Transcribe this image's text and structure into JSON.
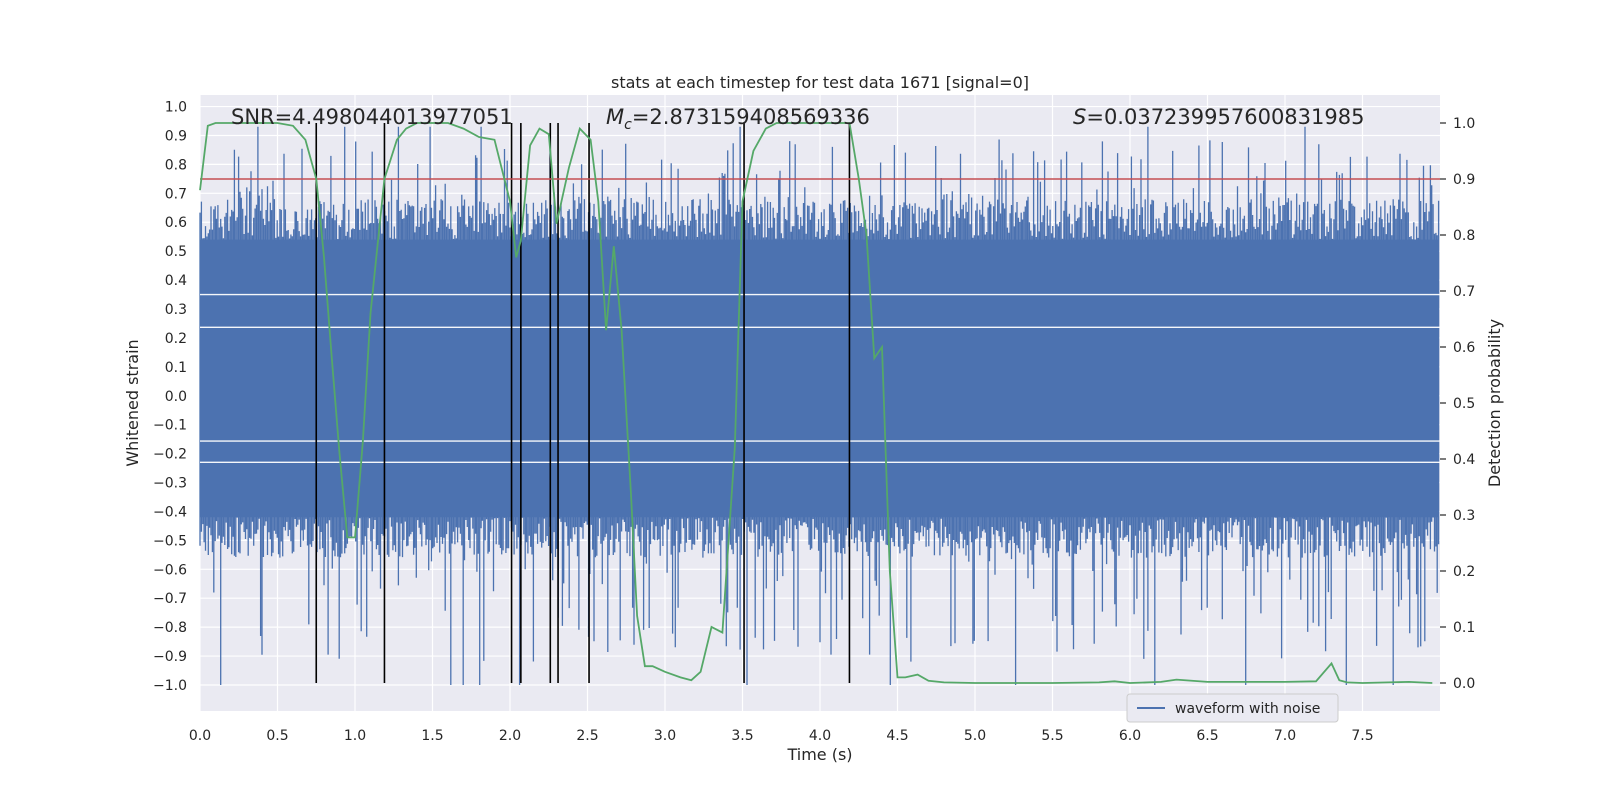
{
  "chart_data": {
    "type": "line",
    "title": "stats at each timestep for test data 1671 [signal=0]",
    "xlabel": "Time (s)",
    "ylabel": "Whitened strain",
    "ylabel_right": "Detection probability",
    "xlim": [
      0.0,
      8.0
    ],
    "ylim": [
      -1.09,
      1.04
    ],
    "ylim_right": [
      -0.05,
      1.05
    ],
    "x_ticks": [
      0.0,
      0.5,
      1.0,
      1.5,
      2.0,
      2.5,
      3.0,
      3.5,
      4.0,
      4.5,
      5.0,
      5.5,
      6.0,
      6.5,
      7.0,
      7.5
    ],
    "x_tick_labels": [
      "0.0",
      "0.5",
      "1.0",
      "1.5",
      "2.0",
      "2.5",
      "3.0",
      "3.5",
      "4.0",
      "4.5",
      "5.0",
      "5.5",
      "6.0",
      "6.5",
      "7.0",
      "7.5"
    ],
    "y_ticks": [
      1.0,
      0.9,
      0.8,
      0.7,
      0.6,
      0.5,
      0.4,
      0.3,
      0.2,
      0.1,
      0.0,
      -0.1,
      -0.2,
      -0.3,
      -0.4,
      -0.5,
      -0.6,
      -0.7,
      -0.8,
      -0.9,
      -1.0
    ],
    "y_tick_labels": [
      "1.0",
      "0.9",
      "0.8",
      "0.7",
      "0.6",
      "0.5",
      "0.4",
      "0.3",
      "0.2",
      "0.1",
      "0.0",
      "−0.1",
      "−0.2",
      "−0.3",
      "−0.4",
      "−0.5",
      "−0.6",
      "−0.7",
      "−0.8",
      "−0.9",
      "−1.0"
    ],
    "y_ticks_right": [
      1.0,
      0.9,
      0.8,
      0.7,
      0.6,
      0.5,
      0.4,
      0.3,
      0.2,
      0.1,
      0.0
    ],
    "y_tick_labels_right": [
      "1.0",
      "0.9",
      "0.8",
      "0.7",
      "0.6",
      "0.5",
      "0.4",
      "0.3",
      "0.2",
      "0.1",
      "0.0"
    ],
    "annotations": {
      "snr": "SNR=4.498044013977051",
      "mc_symbol": "M",
      "mc_subscript": "c",
      "mc_value": "=2.873159408569336",
      "s_symbol": "S",
      "s_value": "=0.037239957600831985"
    },
    "legend": {
      "label": "waveform with noise",
      "location": "bottom-right"
    },
    "threshold_right": 0.9,
    "vertical_lines_x": [
      0.75,
      1.19,
      2.01,
      2.07,
      2.26,
      2.31,
      2.51,
      3.51,
      4.19
    ],
    "waveform": {
      "name": "waveform with noise",
      "color": "#4c72b0",
      "duration_s": 8.0,
      "core_band": [
        -0.42,
        0.54
      ],
      "bright_dense_band": [
        -0.23,
        0.35
      ],
      "typical_peak_max": 0.93,
      "typical_trough_min": -1.0
    },
    "series": [
      {
        "name": "detection probability",
        "axis": "right",
        "color": "#55a868",
        "x": [
          0.0,
          0.05,
          0.1,
          0.2,
          0.3,
          0.4,
          0.5,
          0.6,
          0.68,
          0.75,
          0.8,
          0.85,
          0.9,
          0.95,
          1.0,
          1.05,
          1.1,
          1.19,
          1.27,
          1.33,
          1.4,
          1.5,
          1.6,
          1.7,
          1.8,
          1.9,
          2.0,
          2.04,
          2.07,
          2.13,
          2.19,
          2.25,
          2.3,
          2.38,
          2.45,
          2.52,
          2.57,
          2.62,
          2.67,
          2.72,
          2.78,
          2.82,
          2.87,
          2.92,
          3.0,
          3.1,
          3.17,
          3.23,
          3.3,
          3.37,
          3.45,
          3.5,
          3.57,
          3.65,
          3.72,
          3.82,
          3.9,
          4.0,
          4.1,
          4.19,
          4.25,
          4.3,
          4.35,
          4.4,
          4.45,
          4.5,
          4.55,
          4.63,
          4.7,
          4.8,
          5.0,
          5.5,
          5.8,
          5.9,
          6.0,
          6.2,
          6.3,
          6.5,
          7.0,
          7.2,
          7.3,
          7.35,
          7.4,
          7.5,
          7.8,
          7.95
        ],
        "values": [
          0.88,
          0.995,
          1.0,
          1.0,
          1.0,
          1.0,
          1.0,
          0.995,
          0.97,
          0.9,
          0.76,
          0.58,
          0.41,
          0.26,
          0.26,
          0.43,
          0.66,
          0.9,
          0.97,
          0.99,
          1.0,
          1.0,
          1.0,
          0.99,
          0.975,
          0.97,
          0.86,
          0.76,
          0.79,
          0.96,
          0.99,
          0.98,
          0.82,
          0.92,
          0.99,
          0.97,
          0.86,
          0.63,
          0.78,
          0.63,
          0.34,
          0.12,
          0.03,
          0.03,
          0.02,
          0.01,
          0.005,
          0.02,
          0.1,
          0.09,
          0.42,
          0.86,
          0.95,
          0.99,
          1.0,
          1.0,
          1.0,
          1.0,
          1.0,
          1.0,
          0.9,
          0.8,
          0.58,
          0.6,
          0.2,
          0.01,
          0.01,
          0.015,
          0.004,
          0.001,
          0.0,
          0.0,
          0.001,
          0.003,
          0.0,
          0.002,
          0.006,
          0.002,
          0.002,
          0.003,
          0.035,
          0.005,
          0.001,
          0.0,
          0.002,
          0.0
        ]
      },
      {
        "name": "threshold",
        "axis": "right",
        "color": "#c44e52",
        "x": [
          0.0,
          8.0
        ],
        "values": [
          0.9,
          0.9
        ]
      }
    ]
  }
}
